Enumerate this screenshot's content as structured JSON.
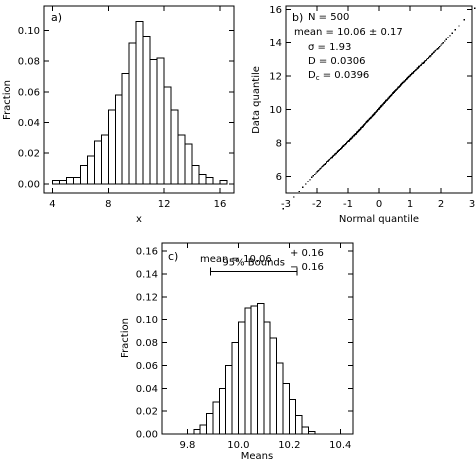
{
  "chart_data": [
    {
      "panel": "a)",
      "type": "histogram",
      "xlabel": "x",
      "ylabel": "Fraction",
      "xlim": [
        3.4,
        17.0
      ],
      "ylim": [
        -0.006,
        0.116
      ],
      "xticks": [
        4,
        8,
        12,
        16
      ],
      "yticks": [
        0.0,
        0.02,
        0.04,
        0.06,
        0.08,
        0.1
      ],
      "ytick_labels": [
        "0.00",
        "0.02",
        "0.04",
        "0.06",
        "0.08",
        "0.10"
      ],
      "bin_edges": [
        4.0,
        4.5,
        5.0,
        5.5,
        6.0,
        6.5,
        7.0,
        7.5,
        8.0,
        8.5,
        9.0,
        9.5,
        10.0,
        10.5,
        11.0,
        11.5,
        12.0,
        12.5,
        13.0,
        13.5,
        14.0,
        14.5,
        15.0,
        15.5,
        16.0,
        16.5
      ],
      "values": [
        0.002,
        0.002,
        0.004,
        0.004,
        0.012,
        0.018,
        0.028,
        0.032,
        0.048,
        0.058,
        0.072,
        0.092,
        0.106,
        0.096,
        0.081,
        0.082,
        0.063,
        0.048,
        0.032,
        0.026,
        0.012,
        0.006,
        0.004,
        0.0,
        0.002
      ]
    },
    {
      "panel": "b)",
      "type": "scatter",
      "xlabel": "Normal quantile",
      "ylabel": "Data quantile",
      "xlim": [
        -3.0,
        3.0
      ],
      "ylim": [
        5.0,
        16.2
      ],
      "xticks": [
        -3,
        -2,
        -1,
        0,
        1,
        2,
        3
      ],
      "yticks": [
        6,
        8,
        10,
        12,
        14,
        16
      ],
      "n_points": 500,
      "quantile_line": {
        "intercept": 10.06,
        "slope": 1.93
      },
      "stats": {
        "n_label": "N  =  500",
        "mean_label": "mean  =  10.06  ±  0.17",
        "sigma_label": "σ   =  1.93",
        "d_label": "D   =  0.0306",
        "dc_main": "D",
        "dc_sub": "c",
        "dc_value": "  =  0.0396"
      }
    },
    {
      "panel": "c)",
      "type": "histogram",
      "xlabel": "Means",
      "ylabel": "Fraction",
      "xlim": [
        9.7,
        10.45
      ],
      "ylim": [
        0.0,
        0.167
      ],
      "xticks": [
        9.8,
        10.0,
        10.2,
        10.4
      ],
      "xtick_labels": [
        "9.8",
        "10.0",
        "10.2",
        "10.4"
      ],
      "yticks": [
        0.0,
        0.02,
        0.04,
        0.06,
        0.08,
        0.1,
        0.12,
        0.14,
        0.16
      ],
      "ytick_labels": [
        "0.00",
        "0.02",
        "0.04",
        "0.06",
        "0.08",
        "0.10",
        "0.12",
        "0.14",
        "0.16"
      ],
      "bin_edges": [
        9.825,
        9.85,
        9.875,
        9.9,
        9.925,
        9.95,
        9.975,
        10.0,
        10.025,
        10.05,
        10.075,
        10.1,
        10.125,
        10.15,
        10.175,
        10.2,
        10.225,
        10.25,
        10.275,
        10.3
      ],
      "values": [
        0.004,
        0.008,
        0.018,
        0.028,
        0.04,
        0.06,
        0.08,
        0.098,
        0.11,
        0.112,
        0.114,
        0.098,
        0.084,
        0.062,
        0.044,
        0.03,
        0.016,
        0.006,
        0.002
      ],
      "bounds": {
        "label": "95% Bounds",
        "low": 9.89,
        "high": 10.23,
        "level": 0.142
      },
      "stats": {
        "mean_label": "mean  =   10.06",
        "plus": "+  0.16",
        "minus": "−  0.16"
      }
    }
  ]
}
